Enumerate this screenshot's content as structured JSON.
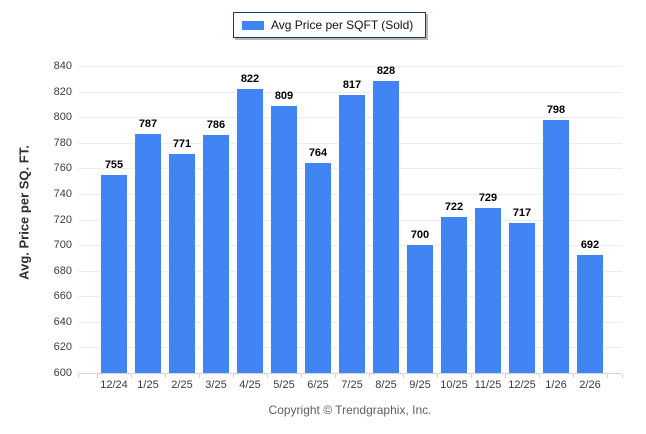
{
  "legend": {
    "label": "Avg Price per SQFT (Sold)"
  },
  "footer": {
    "text": "Copyright © Trendgraphix, Inc."
  },
  "chart_data": {
    "type": "bar",
    "title": "",
    "categories": [
      "12/24",
      "1/25",
      "2/25",
      "3/25",
      "4/25",
      "5/25",
      "6/25",
      "7/25",
      "8/25",
      "9/25",
      "10/25",
      "11/25",
      "12/25",
      "1/26",
      "2/26"
    ],
    "values": [
      755,
      787,
      771,
      786,
      822,
      809,
      764,
      817,
      828,
      700,
      722,
      729,
      717,
      798,
      692
    ],
    "xlabel": "",
    "ylabel": "Avg. Price per SQ. FT.",
    "ylim": [
      600,
      840
    ],
    "ytick_step": 20,
    "yticks": [
      600,
      620,
      640,
      660,
      680,
      700,
      720,
      740,
      760,
      780,
      800,
      820,
      840
    ],
    "grid": true,
    "legend_position": "top-center",
    "value_labels": true
  },
  "colors": {
    "bar": "#4184f3",
    "legend_border": "#1f3864",
    "gridline": "#ededed",
    "axis_line": "#d6d6d6",
    "tick_mark": "#cfd4da",
    "value_label": "#000000",
    "tick_label": "#3c3c3c",
    "footer_text": "#5f5f5f"
  }
}
